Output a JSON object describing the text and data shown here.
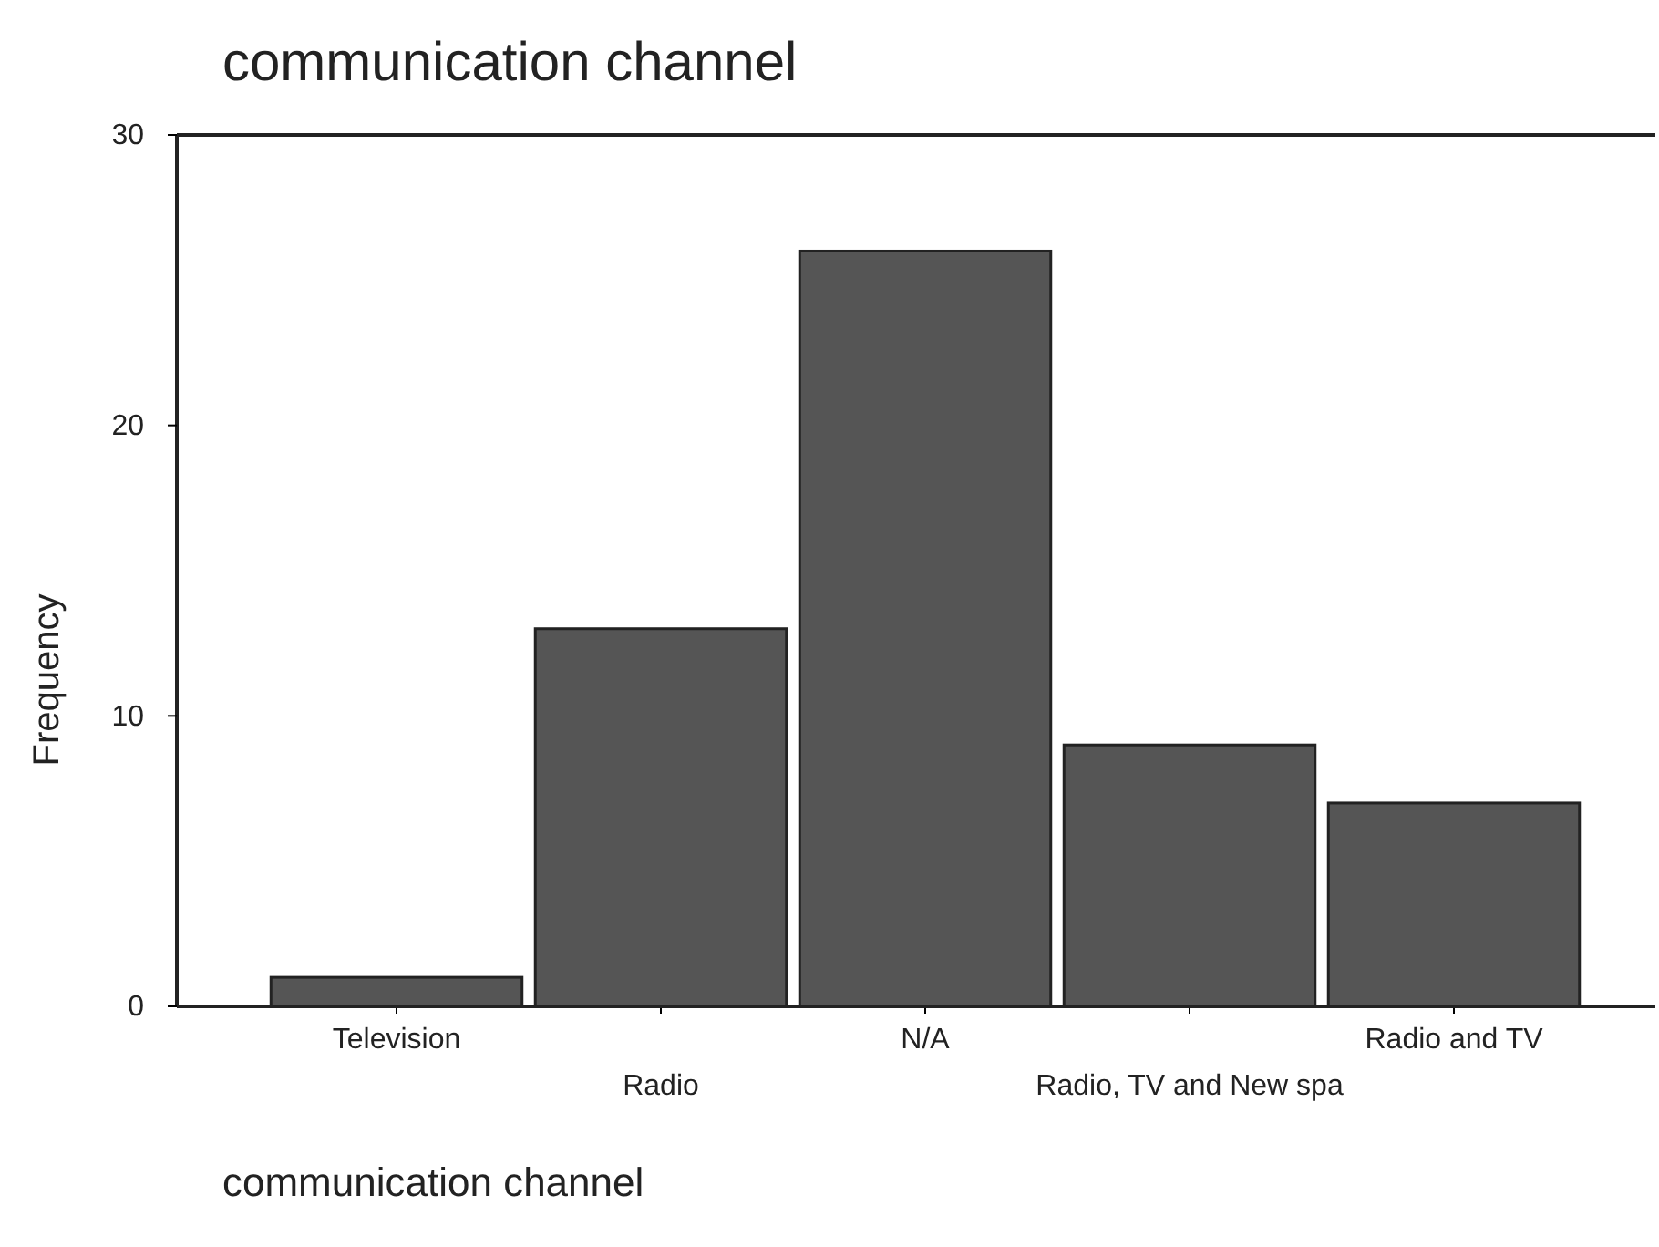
{
  "chart_data": {
    "type": "bar",
    "title": "communication channel",
    "xlabel": "communication channel",
    "ylabel": "Frequency",
    "categories": [
      "Television",
      "Radio",
      "N/A",
      "Radio, TV and New spa",
      "Radio and TV"
    ],
    "values": [
      1,
      13,
      26,
      9,
      7
    ],
    "color": "#555555",
    "ylim": [
      0,
      30
    ],
    "yticks": [
      0,
      10,
      20,
      30
    ],
    "grid": false
  }
}
